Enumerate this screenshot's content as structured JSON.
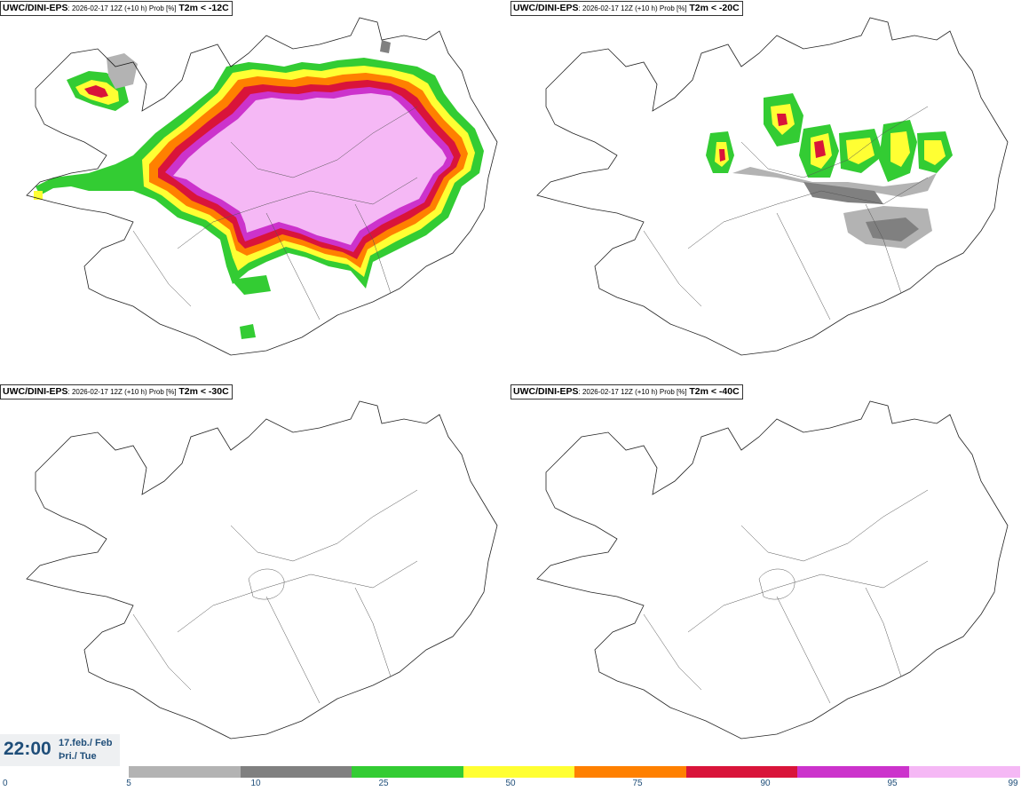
{
  "panels": [
    {
      "model": "UWC/DINI-EPS",
      "meta": ": 2026-02-17 12Z (+10 h) Prob [%]",
      "threshold": "T2m < -12C"
    },
    {
      "model": "UWC/DINI-EPS",
      "meta": ": 2026-02-17 12Z (+10 h) Prob [%]",
      "threshold": "T2m < -20C"
    },
    {
      "model": "UWC/DINI-EPS",
      "meta": ": 2026-02-17 12Z (+10 h) Prob [%]",
      "threshold": "T2m < -30C"
    },
    {
      "model": "UWC/DINI-EPS",
      "meta": ": 2026-02-17 12Z (+10 h) Prob [%]",
      "threshold": "T2m < -40C"
    }
  ],
  "valid_time": {
    "time": "22:00",
    "date_line1": "17.feb./ Feb",
    "date_line2": "Þri./ Tue"
  },
  "legend": {
    "ticks": [
      "0",
      "5",
      "10",
      "25",
      "50",
      "75",
      "90",
      "95",
      "99"
    ],
    "colors": [
      "#b3b3b3",
      "#808080",
      "#33cc33",
      "#ffff33",
      "#ff8000",
      "#d9143a",
      "#cc33cc",
      "#f5b8f5"
    ]
  }
}
